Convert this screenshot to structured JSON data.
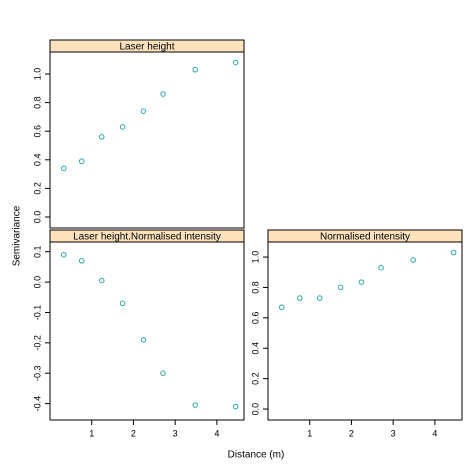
{
  "xlabel": "Distance (m)",
  "ylabel": "Semivariance",
  "chart_data": [
    {
      "type": "scatter",
      "title": "Laser height",
      "color": "#30a8a8",
      "x": [
        0.33,
        0.76,
        1.24,
        1.74,
        2.24,
        2.71,
        3.48,
        4.45
      ],
      "values": [
        0.34,
        0.39,
        0.56,
        0.63,
        0.74,
        0.86,
        1.03,
        1.08
      ],
      "xlim": [
        0,
        4.65
      ],
      "ylim": [
        -0.077,
        1.154
      ],
      "yticks": [
        {
          "value": 0,
          "label": "0.0"
        },
        0.2,
        0.4,
        0.6,
        0.8,
        {
          "value": 1,
          "label": "1.0"
        }
      ]
    },
    {
      "type": "scatter",
      "title": "Laser height.Normalised intensity",
      "color": "#30a8a8",
      "x": [
        0.33,
        0.76,
        1.24,
        1.74,
        2.24,
        2.71,
        3.48,
        4.45
      ],
      "values": [
        0.09,
        0.07,
        0.005,
        -0.07,
        -0.19,
        -0.3,
        -0.405,
        -0.41
      ],
      "xlim": [
        0,
        4.65
      ],
      "ylim": [
        -0.454,
        0.132
      ],
      "xticks": [
        1,
        2,
        3,
        4
      ],
      "yticks": [
        0.1,
        {
          "value": 0,
          "label": "0.0"
        },
        -0.1,
        -0.2,
        -0.3,
        -0.4
      ]
    },
    {
      "type": "scatter",
      "title": "Normalised intensity",
      "color": "#30a8a8",
      "x": [
        0.33,
        0.76,
        1.24,
        1.74,
        2.24,
        2.71,
        3.48,
        4.45
      ],
      "values": [
        0.67,
        0.73,
        0.73,
        0.8,
        0.835,
        0.93,
        0.98,
        1.03
      ],
      "xlim": [
        0,
        4.65
      ],
      "ylim": [
        -0.072,
        1.099
      ],
      "xticks": [
        1,
        2,
        3,
        4
      ],
      "yticks": [
        {
          "value": 0,
          "label": "0.0"
        },
        0.2,
        0.4,
        0.6,
        0.8,
        {
          "value": 1,
          "label": "1.0"
        }
      ]
    }
  ]
}
